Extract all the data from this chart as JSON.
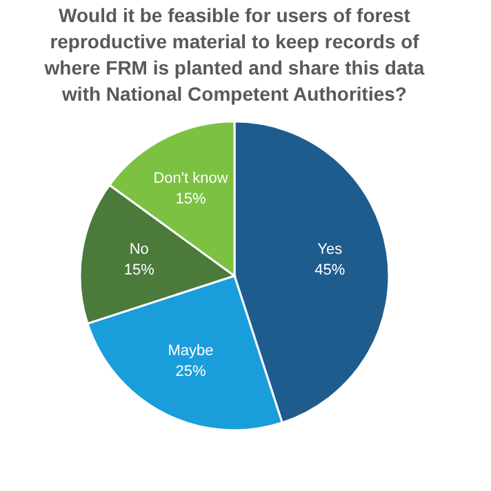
{
  "chart_data": {
    "type": "pie",
    "title": "Would it be feasible for users of forest reproductive material to keep records of where FRM is planted and share this data with National Competent Authorities?",
    "categories": [
      "Yes",
      "Maybe",
      "No",
      "Don't know"
    ],
    "values": [
      45,
      25,
      15,
      15
    ],
    "value_labels": [
      "45%",
      "25%",
      "15%",
      "15%"
    ],
    "colors": [
      "#1f5c8e",
      "#1a9ddb",
      "#4b7a3b",
      "#7cc142"
    ],
    "legend": false
  }
}
